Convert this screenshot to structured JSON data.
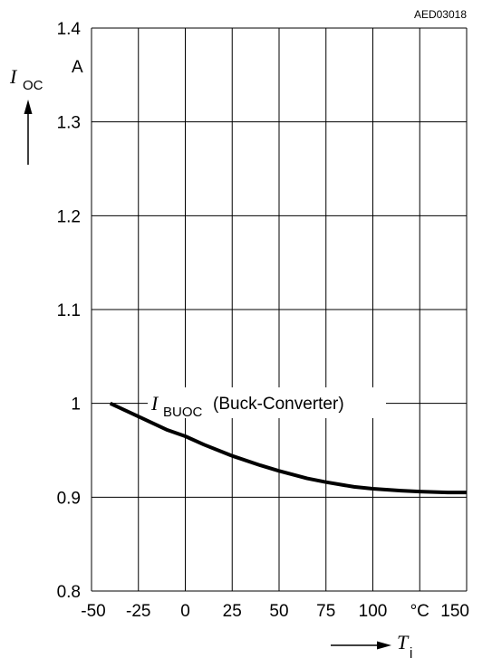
{
  "figure_code": "AED03018",
  "chart_data": {
    "type": "line",
    "x_range": [
      -50,
      150
    ],
    "y_range": [
      0.8,
      1.4
    ],
    "grid": true,
    "x_ticks": [
      "-50",
      "-25",
      "0",
      "25",
      "50",
      "75",
      "100",
      "°C",
      "150"
    ],
    "x_tick_values": [
      -50,
      -25,
      0,
      25,
      50,
      75,
      100,
      125,
      150
    ],
    "y_ticks": [
      "0.8",
      "0.9",
      "1",
      "1.1",
      "1.2",
      "1.3",
      "1.4"
    ],
    "y_tick_values": [
      0.8,
      0.9,
      1.0,
      1.1,
      1.2,
      1.3,
      1.4
    ],
    "x_axis_symbol": "T",
    "x_axis_subscript": "j",
    "y_axis_symbol": "I",
    "y_axis_subscript": "OC",
    "y_axis_unit": "A",
    "series": [
      {
        "name": "I_BUOC (Buck-Converter)",
        "label_symbol": "I",
        "label_subscript": "BUOC",
        "label_text": "(Buck-Converter)",
        "x": [
          -40,
          -25,
          -10,
          0,
          10,
          25,
          40,
          50,
          65,
          75,
          90,
          100,
          115,
          125,
          140,
          150
        ],
        "y": [
          1.0,
          0.986,
          0.972,
          0.965,
          0.956,
          0.944,
          0.934,
          0.928,
          0.92,
          0.916,
          0.911,
          0.909,
          0.907,
          0.906,
          0.905,
          0.905
        ]
      }
    ]
  }
}
